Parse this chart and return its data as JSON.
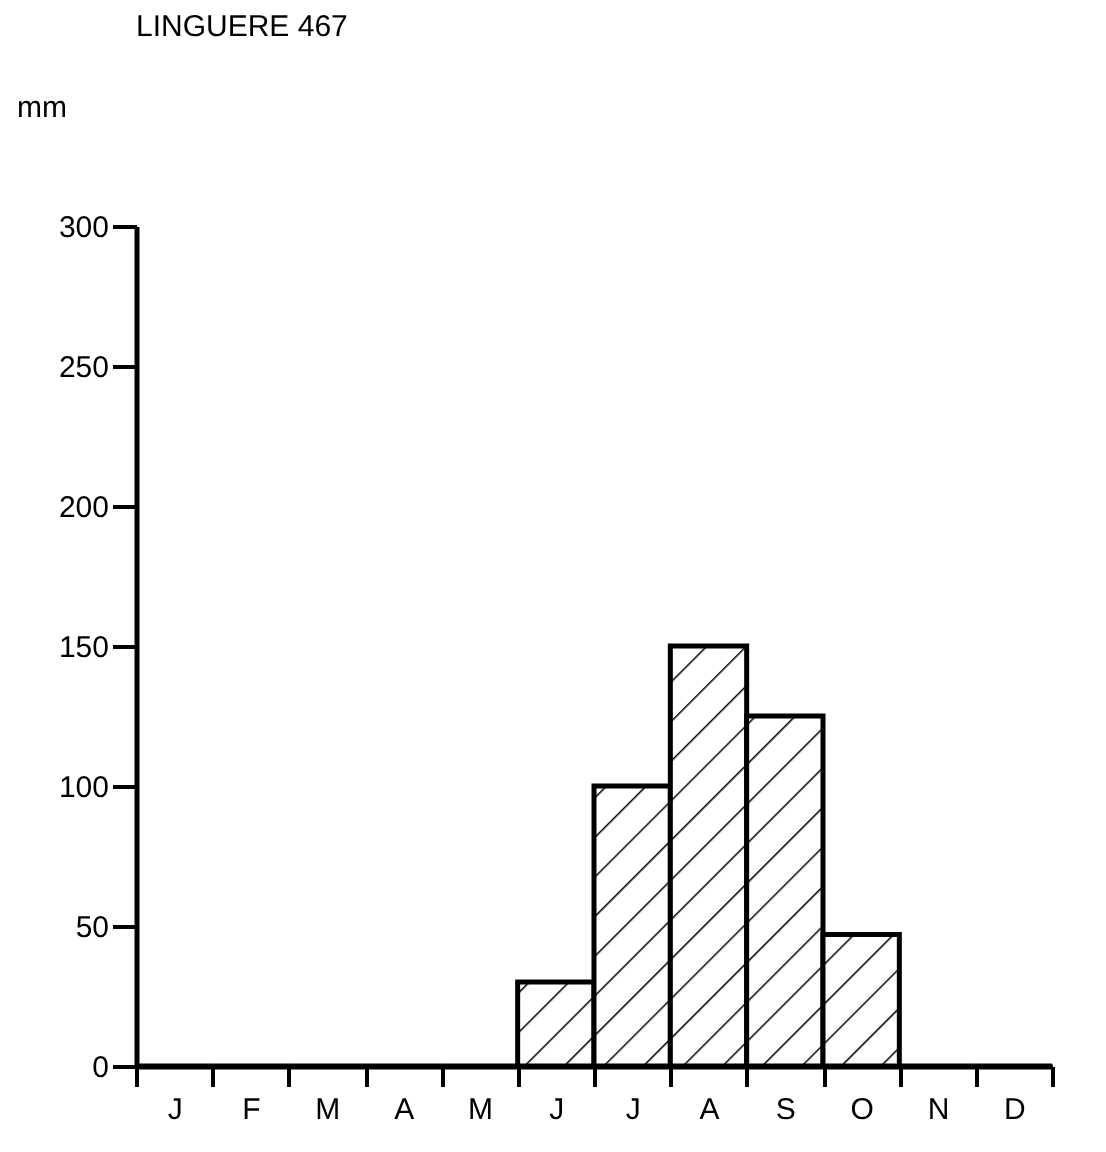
{
  "chart_data": {
    "type": "bar",
    "title": "LINGUERE 467",
    "ylabel": "mm",
    "categories": [
      "J",
      "F",
      "M",
      "A",
      "M",
      "J",
      "J",
      "A",
      "S",
      "O",
      "N",
      "D"
    ],
    "series": [
      {
        "color": "#000000",
        "values": [
          0,
          0,
          0,
          0,
          0,
          30,
          100,
          150,
          125,
          47,
          0,
          0
        ]
      }
    ],
    "ylim": [
      0,
      300
    ],
    "yticks": [
      0,
      50,
      100,
      150,
      200,
      250,
      300
    ],
    "grid": false
  }
}
